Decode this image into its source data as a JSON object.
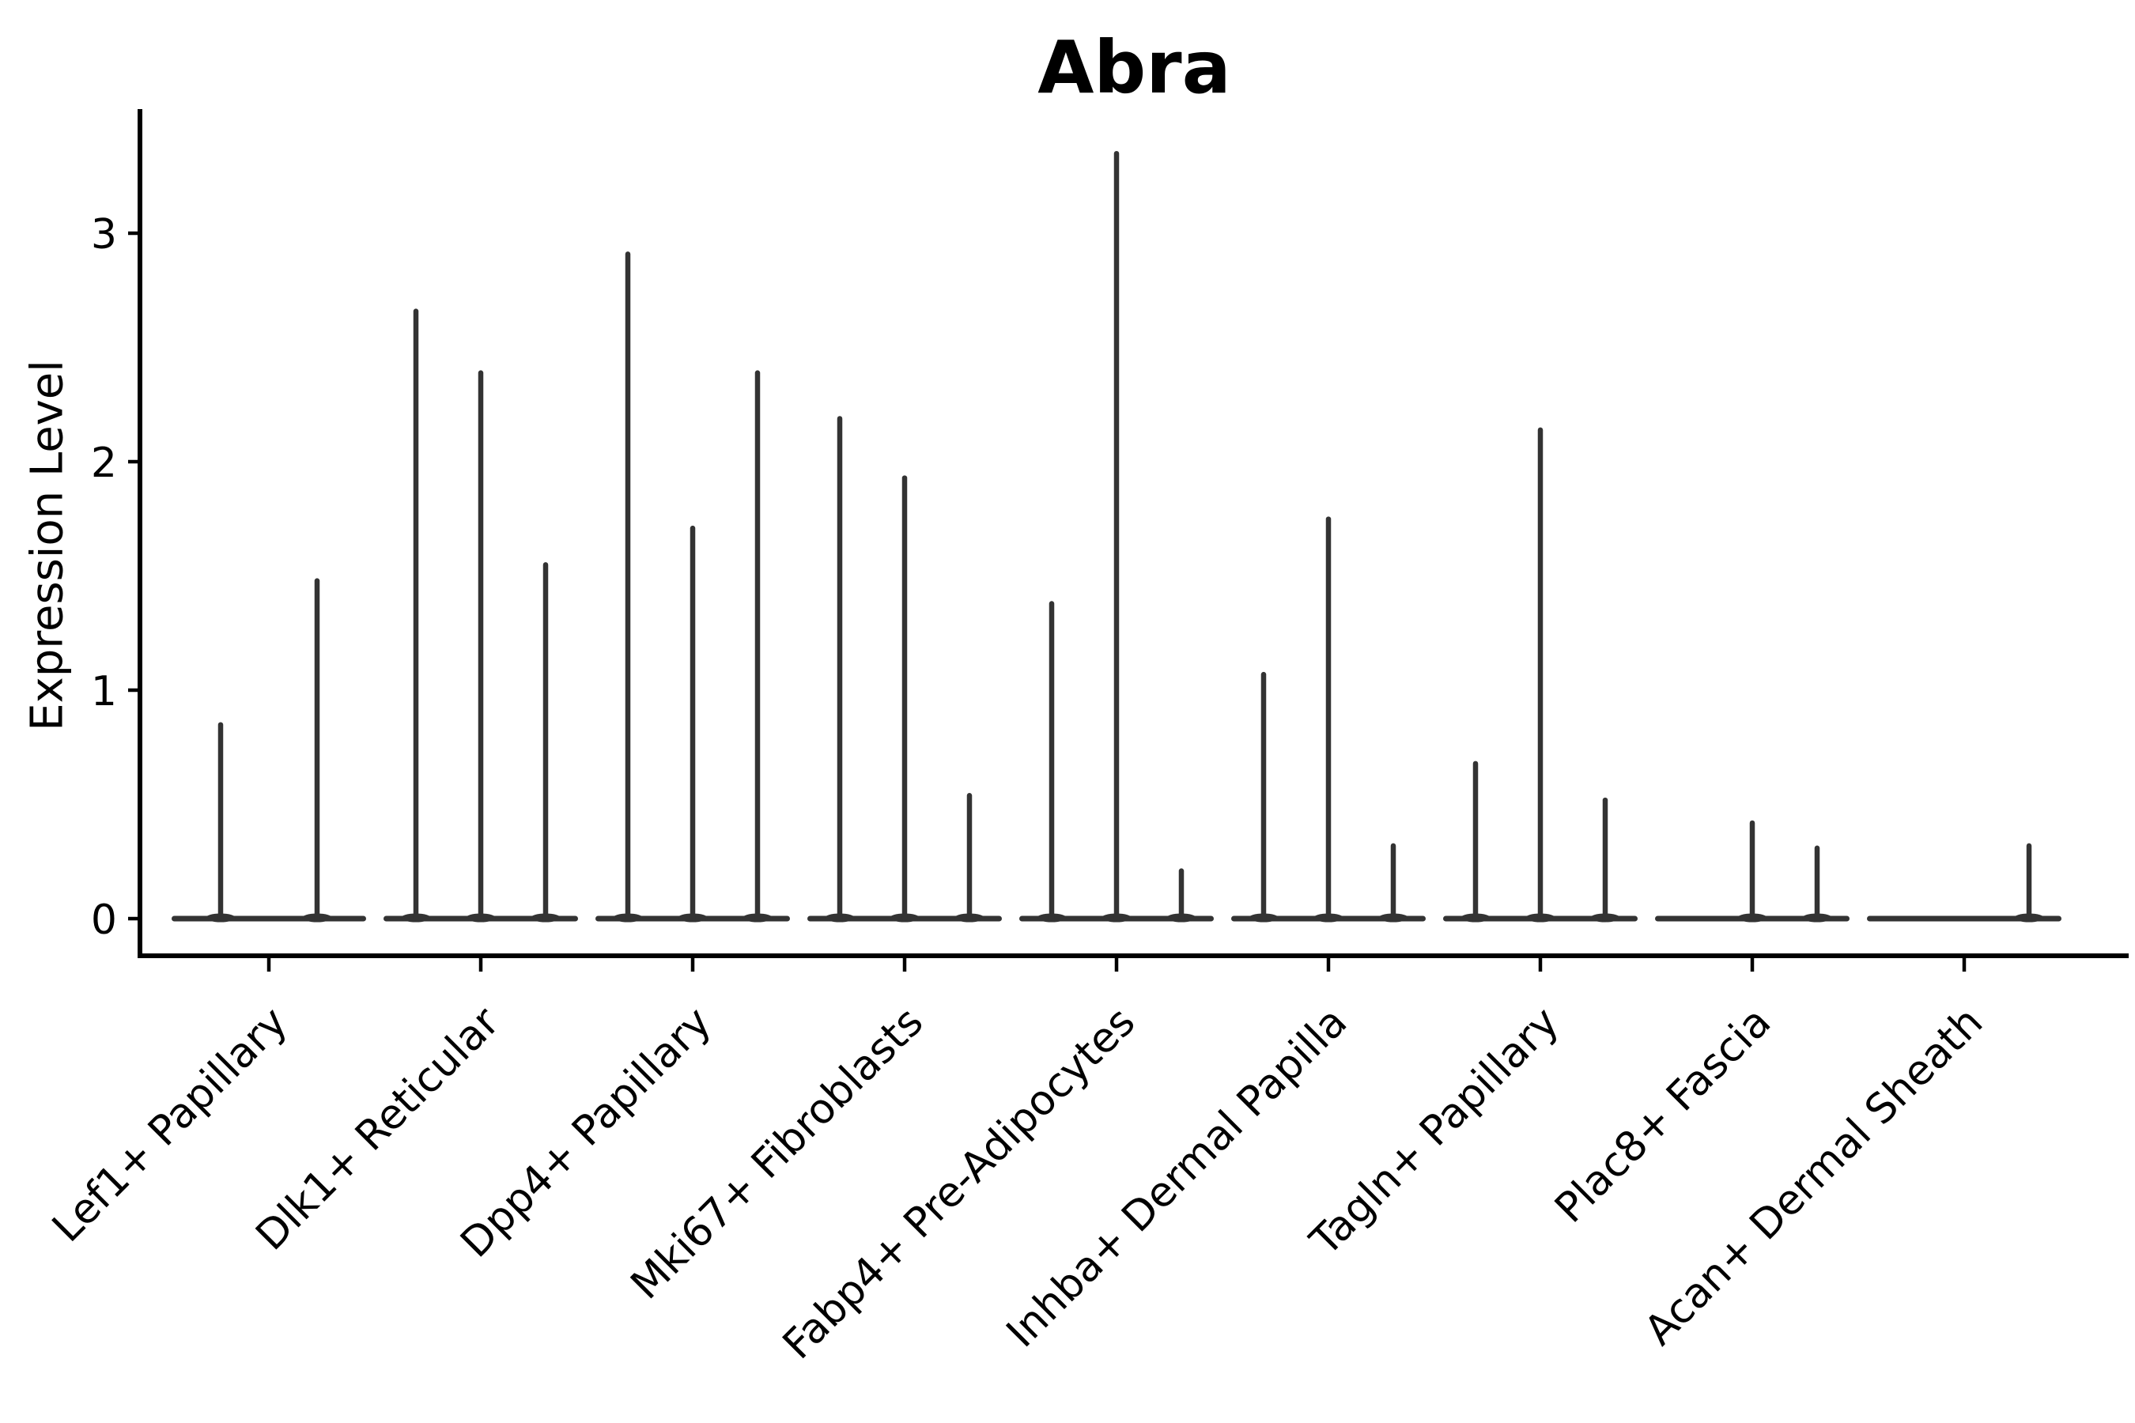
{
  "chart_data": {
    "type": "violin",
    "title": "Abra",
    "ylabel": "Expression Level",
    "xlabel": "",
    "y_ticks": [
      0,
      1,
      2,
      3
    ],
    "ylim": [
      -0.16,
      3.54
    ],
    "grid": false,
    "legend": "none",
    "violin_color": "#333333",
    "axis_color": "#000000",
    "text_color": "#000000",
    "violin_shape_note": "Each violin is almost entirely concentrated at expression 0 (flat wide base) with a single very thin density spike rising to the listed maximum expression value; 0 means the violin is flat with no spike.",
    "groups": [
      {
        "label": "Lef1+ Papillary",
        "violin_max_expression": [
          0.86,
          1.49
        ]
      },
      {
        "label": "Dlk1+ Reticular",
        "violin_max_expression": [
          2.67,
          2.4,
          1.56
        ]
      },
      {
        "label": "Dpp4+ Papillary",
        "violin_max_expression": [
          2.92,
          1.72,
          2.4
        ]
      },
      {
        "label": "Mki67+ Fibroblasts",
        "violin_max_expression": [
          2.2,
          1.94,
          0.55
        ]
      },
      {
        "label": "Fabp4+ Pre-Adipocytes",
        "violin_max_expression": [
          1.39,
          3.36,
          0.22
        ]
      },
      {
        "label": "Inhba+ Dermal Papilla",
        "violin_max_expression": [
          1.08,
          1.76,
          0.33
        ]
      },
      {
        "label": "Tagln+ Papillary",
        "violin_max_expression": [
          0.69,
          2.15,
          0.53
        ]
      },
      {
        "label": "Plac8+ Fascia",
        "violin_max_expression": [
          0,
          0.43,
          0.32
        ]
      },
      {
        "label": "Acan+ Dermal Sheath",
        "violin_max_expression": [
          0,
          0,
          0.33
        ]
      }
    ]
  }
}
